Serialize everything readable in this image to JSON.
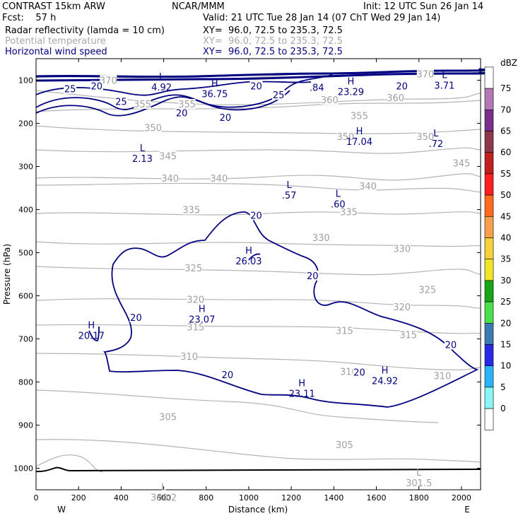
{
  "header": {
    "line1_left": "CONTRAST 15km ARW",
    "line1_mid": "NCAR/MMM",
    "line1_right": "Init: 12 UTC Sun 26 Jan 14",
    "line2_left": "Fcst:    57 h",
    "line2_right": "Valid: 21 UTC Tue 28 Jan 14 (07 ChT Wed 29 Jan 14)",
    "field1": "Radar reflectivity (lamda = 10 cm)",
    "field1_xy": "XY=  96.0, 72.5 to 235.3, 72.5",
    "field2": "Potential temperature",
    "field2_xy": "XY=  96.0, 72.5 to 235.3, 72.5",
    "field3": "Horizontal wind speed",
    "field3_xy": "XY=  96.0, 72.5 to 235.3, 72.5"
  },
  "colorbar": {
    "unit": "dBZ",
    "levels": [
      "75",
      "70",
      "65",
      "60",
      "55",
      "50",
      "45",
      "40",
      "35",
      "30",
      "25",
      "20",
      "15",
      "10",
      "5",
      "0"
    ],
    "colors": [
      "#ffffff",
      "#b279b5",
      "#7a2f8c",
      "#8c3a4a",
      "#c21f1f",
      "#ff1f1f",
      "#ff6a1f",
      "#f5a04a",
      "#f5d23c",
      "#f0e628",
      "#18a618",
      "#4be04b",
      "#3c7ab4",
      "#2828e6",
      "#28b4f5",
      "#8cf5f5",
      "#ffffff"
    ]
  },
  "chart_data": {
    "type": "cross-section contour",
    "xlabel": "Distance (km)",
    "ylabel": "Pressure (hPa)",
    "xlim": [
      0,
      2090
    ],
    "ylim": [
      1050,
      50
    ],
    "x_ticks": [
      "0",
      "200",
      "400",
      "600",
      "800",
      "1000",
      "1200",
      "1400",
      "1600",
      "1800",
      "2000"
    ],
    "x_tick_values": [
      0,
      200,
      400,
      600,
      800,
      1000,
      1200,
      1400,
      1600,
      1800,
      2000
    ],
    "y_ticks": [
      "100",
      "200",
      "300",
      "400",
      "500",
      "600",
      "700",
      "800",
      "900",
      "1000"
    ],
    "y_tick_values": [
      100,
      200,
      300,
      400,
      500,
      600,
      700,
      800,
      900,
      1000
    ],
    "x_end_labels": [
      "W",
      "E"
    ],
    "theta_labels": [
      {
        "t": "370",
        "x": 340,
        "p": 100
      },
      {
        "t": "370",
        "x": 1830,
        "p": 85
      },
      {
        "t": "355",
        "x": 500,
        "p": 155
      },
      {
        "t": "355",
        "x": 710,
        "p": 155
      },
      {
        "t": "360",
        "x": 1380,
        "p": 145
      },
      {
        "t": "360",
        "x": 1690,
        "p": 140
      },
      {
        "t": "355",
        "x": 1520,
        "p": 182
      },
      {
        "t": "350",
        "x": 550,
        "p": 210
      },
      {
        "t": "350",
        "x": 1455,
        "p": 230
      },
      {
        "t": "350",
        "x": 1830,
        "p": 230
      },
      {
        "t": "345",
        "x": 620,
        "p": 275
      },
      {
        "t": "345",
        "x": 2000,
        "p": 292
      },
      {
        "t": "340",
        "x": 630,
        "p": 327
      },
      {
        "t": "340",
        "x": 860,
        "p": 327
      },
      {
        "t": "340",
        "x": 1560,
        "p": 345
      },
      {
        "t": "335",
        "x": 730,
        "p": 400
      },
      {
        "t": "335",
        "x": 1470,
        "p": 405
      },
      {
        "t": "330",
        "x": 1340,
        "p": 465
      },
      {
        "t": "330",
        "x": 1720,
        "p": 490
      },
      {
        "t": "325",
        "x": 740,
        "p": 535
      },
      {
        "t": "325",
        "x": 1840,
        "p": 585
      },
      {
        "t": "320",
        "x": 750,
        "p": 608
      },
      {
        "t": "320",
        "x": 1720,
        "p": 625
      },
      {
        "t": "315",
        "x": 750,
        "p": 672
      },
      {
        "t": "315",
        "x": 1450,
        "p": 680
      },
      {
        "t": "315",
        "x": 1750,
        "p": 690
      },
      {
        "t": "310",
        "x": 720,
        "p": 740
      },
      {
        "t": "310",
        "x": 1470,
        "p": 775
      },
      {
        "t": "310",
        "x": 1910,
        "p": 785
      },
      {
        "t": "305",
        "x": 620,
        "p": 880
      },
      {
        "t": "305",
        "x": 1450,
        "p": 945
      }
    ],
    "wind_labels": [
      {
        "t": "25",
        "x": 160,
        "p": 120
      },
      {
        "t": "20",
        "x": 285,
        "p": 113
      },
      {
        "t": "25",
        "x": 400,
        "p": 149
      },
      {
        "t": "20",
        "x": 685,
        "p": 175
      },
      {
        "t": "20",
        "x": 890,
        "p": 186
      },
      {
        "t": "20",
        "x": 1035,
        "p": 113
      },
      {
        "t": "25",
        "x": 1140,
        "p": 134
      },
      {
        "t": "20",
        "x": 1720,
        "p": 113
      },
      {
        "t": "20",
        "x": 1035,
        "p": 413
      },
      {
        "t": "20",
        "x": 1300,
        "p": 553
      },
      {
        "t": "20",
        "x": 470,
        "p": 650
      },
      {
        "t": "20",
        "x": 1950,
        "p": 713
      },
      {
        "t": "20",
        "x": 900,
        "p": 783
      },
      {
        "t": "20",
        "x": 1520,
        "p": 777
      }
    ],
    "extrema": [
      {
        "k": "L",
        "v": "4.92",
        "x": 590,
        "p": 104
      },
      {
        "k": "H",
        "v": "36.75",
        "x": 840,
        "p": 120
      },
      {
        "k": "",
        "v": ".84",
        "x": 1320,
        "p": 105
      },
      {
        "k": "H",
        "v": "23.29",
        "x": 1480,
        "p": 115
      },
      {
        "k": "L",
        "v": "3.71",
        "x": 1920,
        "p": 100
      },
      {
        "k": "H",
        "v": "17.04",
        "x": 1520,
        "p": 230
      },
      {
        "k": "L",
        "v": ".72",
        "x": 1880,
        "p": 235
      },
      {
        "k": "L",
        "v": "2.13",
        "x": 500,
        "p": 270
      },
      {
        "k": "L",
        "v": ".57",
        "x": 1190,
        "p": 355
      },
      {
        "k": "L",
        "v": ".60",
        "x": 1420,
        "p": 375
      },
      {
        "k": "H",
        "v": "26.03",
        "x": 1000,
        "p": 507
      },
      {
        "k": "H",
        "v": "23.07",
        "x": 780,
        "p": 643
      },
      {
        "k": "H",
        "v": "20.17",
        "x": 260,
        "p": 680
      },
      {
        "k": "H",
        "v": "24.92",
        "x": 1640,
        "p": 785
      },
      {
        "k": "H",
        "v": "23.11",
        "x": 1250,
        "p": 815
      },
      {
        "k": "L",
        "v": "301.5",
        "x": 1800,
        "p": 1022
      },
      {
        "k": "L",
        "v": "300.2",
        "x": 600,
        "p": 1056
      }
    ]
  }
}
